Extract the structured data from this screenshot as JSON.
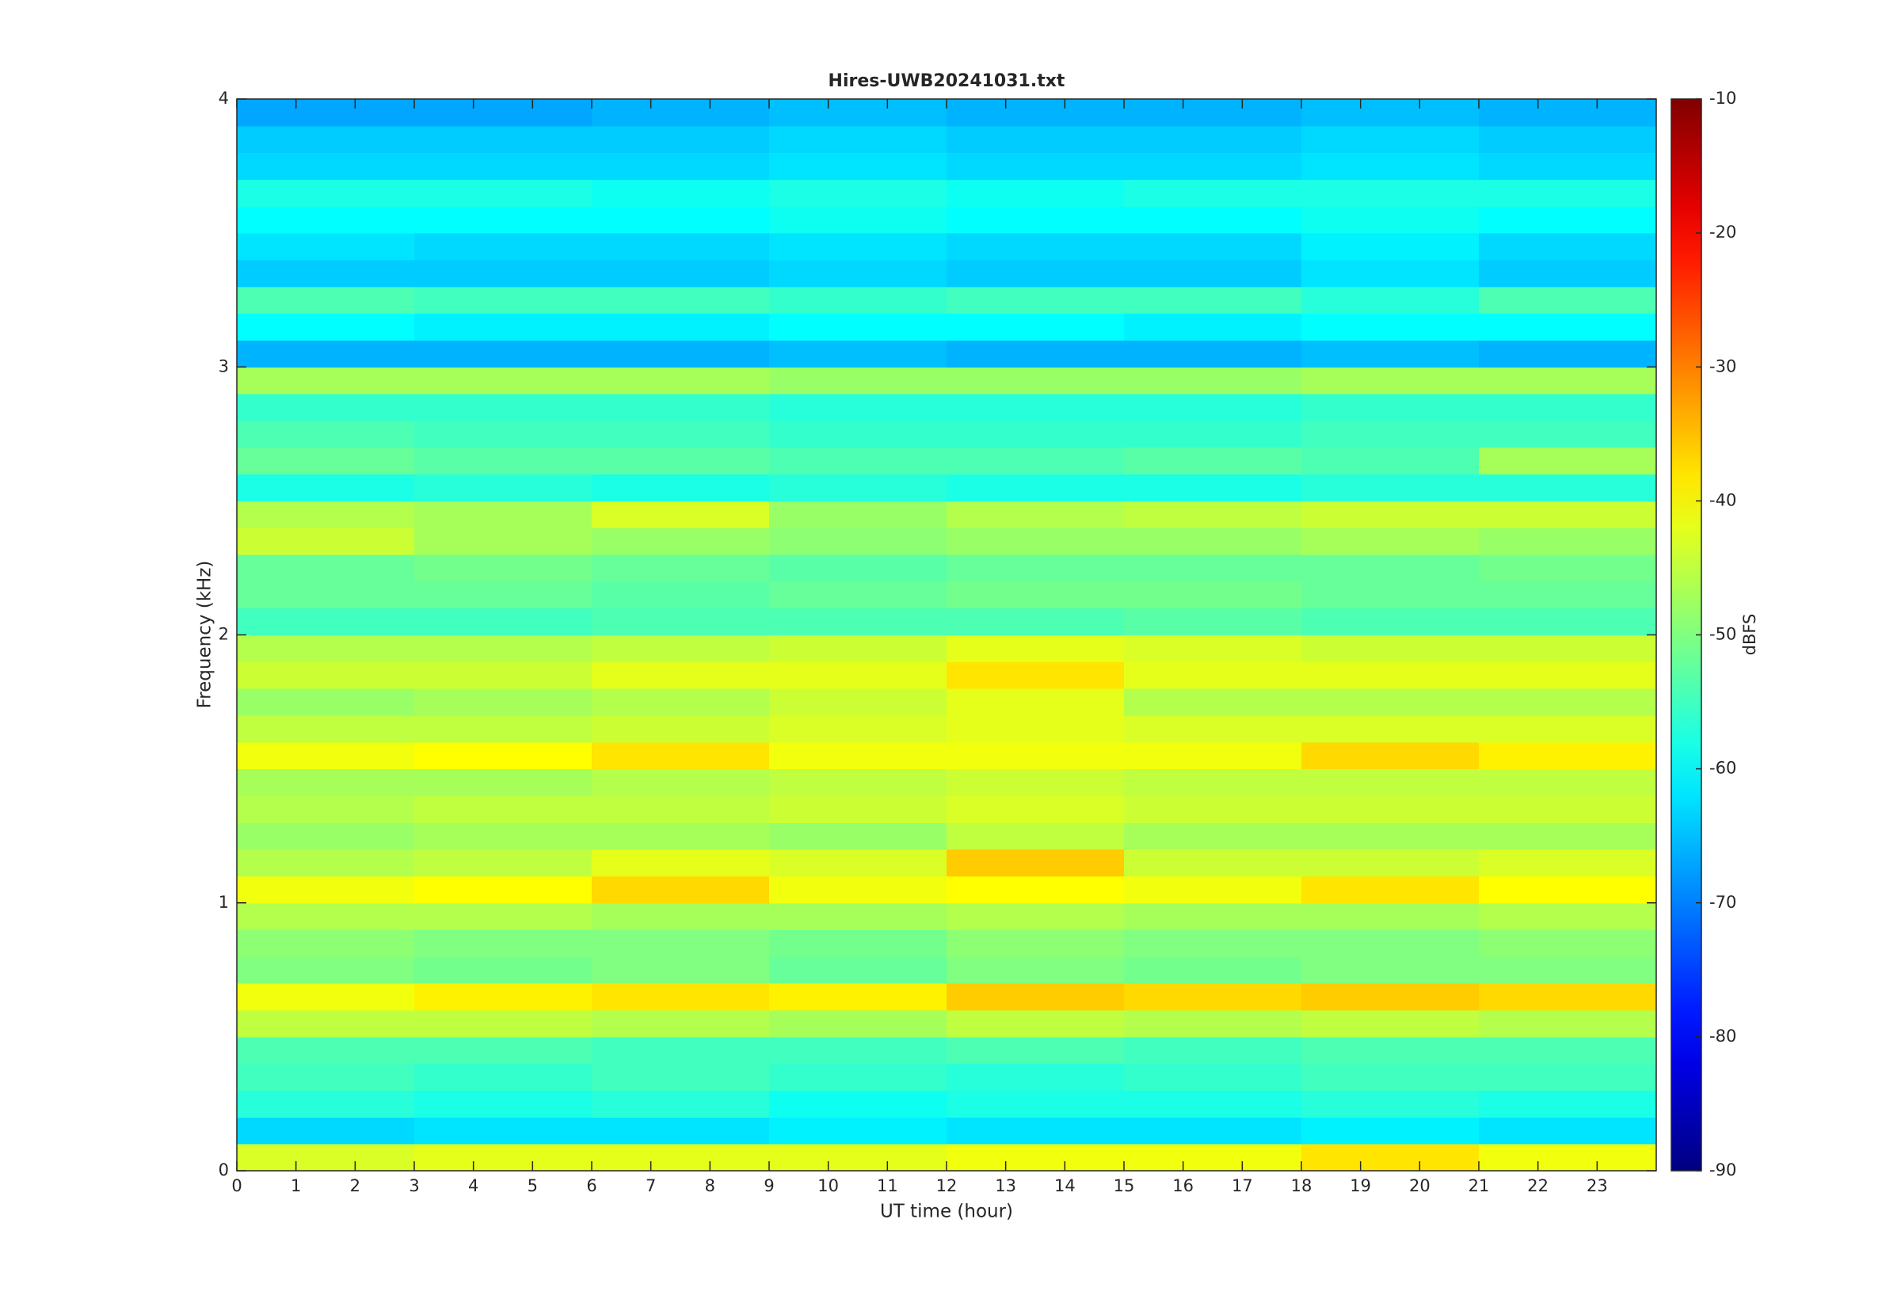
{
  "chart_data": {
    "type": "heatmap",
    "title": "Hires-UWB20241031.txt",
    "xlabel": "UT time (hour)",
    "ylabel": "Frequency (kHz)",
    "colorbar_label": "dBFS",
    "colormap": "jet",
    "xlim": [
      0,
      24
    ],
    "ylim": [
      0,
      4
    ],
    "xticks": [
      0,
      1,
      2,
      3,
      4,
      5,
      6,
      7,
      8,
      9,
      10,
      11,
      12,
      13,
      14,
      15,
      16,
      17,
      18,
      19,
      20,
      21,
      22,
      23
    ],
    "yticks": [
      0,
      1,
      2,
      3,
      4
    ],
    "clim": [
      -90,
      -10
    ],
    "cticks": [
      -90,
      -80,
      -70,
      -60,
      -50,
      -40,
      -30,
      -20,
      -10
    ],
    "x_bins": [
      0,
      3,
      6,
      9,
      12,
      15,
      18,
      21,
      24
    ],
    "y_bins": [
      0,
      0.1,
      0.2,
      0.3,
      0.4,
      0.5,
      0.6,
      0.7,
      0.8,
      0.9,
      1,
      1.1,
      1.2,
      1.3,
      1.4,
      1.5,
      1.6,
      1.7,
      1.8,
      1.9,
      2,
      2.1,
      2.2,
      2.3,
      2.4,
      2.5,
      2.6,
      2.7,
      2.8,
      2.9,
      3,
      3.1,
      3.2,
      3.3,
      3.4,
      3.5,
      3.6,
      3.7,
      3.8,
      3.9,
      4
    ],
    "z": [
      [
        -43,
        -42,
        -42,
        -42,
        -41,
        -41,
        -38,
        -41
      ],
      [
        -63,
        -62,
        -62,
        -61,
        -62,
        -62,
        -61,
        -62
      ],
      [
        -57,
        -58,
        -57,
        -59,
        -58,
        -58,
        -57,
        -58
      ],
      [
        -55,
        -56,
        -55,
        -56,
        -57,
        -56,
        -55,
        -55
      ],
      [
        -54,
        -54,
        -55,
        -55,
        -54,
        -55,
        -54,
        -54
      ],
      [
        -45,
        -45,
        -46,
        -47,
        -45,
        -46,
        -45,
        -46
      ],
      [
        -41,
        -39,
        -38,
        -39,
        -36,
        -37,
        -36,
        -37
      ],
      [
        -50,
        -51,
        -50,
        -52,
        -50,
        -51,
        -50,
        -50
      ],
      [
        -49,
        -50,
        -50,
        -51,
        -49,
        -50,
        -50,
        -49
      ],
      [
        -46,
        -46,
        -47,
        -47,
        -46,
        -47,
        -47,
        -46
      ],
      [
        -41,
        -40,
        -37,
        -41,
        -40,
        -41,
        -38,
        -40
      ],
      [
        -46,
        -45,
        -42,
        -43,
        -36,
        -44,
        -44,
        -43
      ],
      [
        -48,
        -47,
        -47,
        -48,
        -45,
        -47,
        -47,
        -47
      ],
      [
        -46,
        -45,
        -45,
        -44,
        -43,
        -44,
        -44,
        -44
      ],
      [
        -47,
        -47,
        -46,
        -45,
        -44,
        -45,
        -45,
        -45
      ],
      [
        -41,
        -40,
        -38,
        -41,
        -41,
        -41,
        -37,
        -39
      ],
      [
        -45,
        -45,
        -44,
        -43,
        -42,
        -43,
        -43,
        -43
      ],
      [
        -48,
        -47,
        -46,
        -44,
        -42,
        -46,
        -46,
        -46
      ],
      [
        -44,
        -44,
        -42,
        -42,
        -38,
        -42,
        -42,
        -42
      ],
      [
        -46,
        -46,
        -45,
        -44,
        -42,
        -43,
        -44,
        -44
      ],
      [
        -55,
        -55,
        -54,
        -54,
        -54,
        -53,
        -54,
        -54
      ],
      [
        -52,
        -52,
        -53,
        -52,
        -51,
        -51,
        -52,
        -52
      ],
      [
        -52,
        -51,
        -52,
        -53,
        -52,
        -52,
        -52,
        -51
      ],
      [
        -44,
        -47,
        -48,
        -49,
        -48,
        -48,
        -47,
        -48
      ],
      [
        -46,
        -47,
        -43,
        -48,
        -46,
        -45,
        -44,
        -44
      ],
      [
        -58,
        -57,
        -58,
        -57,
        -58,
        -58,
        -57,
        -57
      ],
      [
        -52,
        -53,
        -53,
        -54,
        -54,
        -53,
        -54,
        -47
      ],
      [
        -54,
        -55,
        -55,
        -56,
        -56,
        -56,
        -55,
        -55
      ],
      [
        -56,
        -56,
        -56,
        -57,
        -57,
        -57,
        -56,
        -56
      ],
      [
        -47,
        -47,
        -47,
        -48,
        -48,
        -48,
        -47,
        -47
      ],
      [
        -66,
        -66,
        -66,
        -65,
        -66,
        -66,
        -65,
        -66
      ],
      [
        -60,
        -61,
        -61,
        -60,
        -60,
        -61,
        -60,
        -60
      ],
      [
        -54,
        -55,
        -55,
        -56,
        -55,
        -55,
        -57,
        -54
      ],
      [
        -64,
        -64,
        -64,
        -63,
        -64,
        -64,
        -62,
        -64
      ],
      [
        -62,
        -63,
        -63,
        -62,
        -63,
        -63,
        -61,
        -63
      ],
      [
        -60,
        -60,
        -60,
        -59,
        -60,
        -60,
        -59,
        -60
      ],
      [
        -58,
        -58,
        -59,
        -58,
        -59,
        -58,
        -58,
        -58
      ],
      [
        -63,
        -63,
        -63,
        -62,
        -63,
        -63,
        -62,
        -63
      ],
      [
        -64,
        -64,
        -64,
        -63,
        -64,
        -64,
        -63,
        -64
      ],
      [
        -67,
        -67,
        -66,
        -65,
        -66,
        -66,
        -65,
        -66
      ]
    ]
  }
}
